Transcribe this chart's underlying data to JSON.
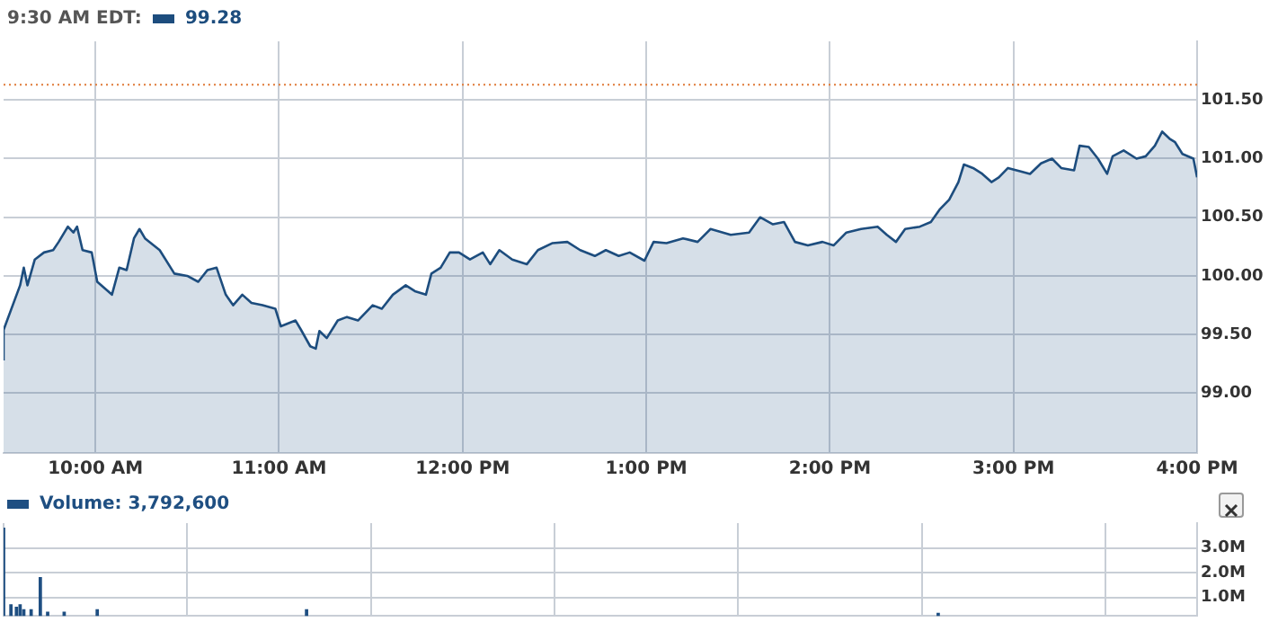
{
  "chart_data": [
    {
      "type": "area",
      "title": "9:30 AM EDT:",
      "legend": "top left",
      "grid": true,
      "xlim": [
        9.5,
        16
      ],
      "xticks": [
        {
          "value": 10,
          "label": "10:00 AM"
        },
        {
          "value": 11,
          "label": "11:00 AM"
        },
        {
          "value": 12,
          "label": "12:00 PM"
        },
        {
          "value": 13,
          "label": "1:00 PM"
        },
        {
          "value": 14,
          "label": "2:00 PM"
        },
        {
          "value": 15,
          "label": "3:00 PM"
        },
        {
          "value": 16,
          "label": "4:00 PM"
        }
      ],
      "ylim": [
        98.49,
        102.0
      ],
      "yticks": [
        {
          "value": 99,
          "label": "99.00"
        },
        {
          "value": 99.5,
          "label": "99.50"
        },
        {
          "value": 100,
          "label": "100.00"
        },
        {
          "value": 100.5,
          "label": "100.50"
        },
        {
          "value": 101,
          "label": "101.00"
        },
        {
          "value": 101.5,
          "label": "101.50"
        }
      ],
      "ref_lines": [
        {
          "axis": "y",
          "value": 101.63,
          "color": "#e07b39",
          "line_style": "dotted"
        }
      ],
      "x": [
        9.5,
        9.5,
        9.59,
        9.61,
        9.63,
        9.67,
        9.72,
        9.77,
        9.8,
        9.85,
        9.88,
        9.9,
        9.93,
        9.98,
        10.01,
        10.09,
        10.13,
        10.17,
        10.21,
        10.24,
        10.27,
        10.35,
        10.43,
        10.5,
        10.56,
        10.61,
        10.66,
        10.71,
        10.75,
        10.8,
        10.85,
        10.91,
        10.98,
        11.01,
        11.09,
        11.12,
        11.17,
        11.2,
        11.22,
        11.26,
        11.32,
        11.37,
        11.43,
        11.51,
        11.56,
        11.62,
        11.69,
        11.74,
        11.8,
        11.83,
        11.88,
        11.93,
        11.98,
        12.04,
        12.11,
        12.15,
        12.2,
        12.27,
        12.35,
        12.41,
        12.49,
        12.57,
        12.64,
        12.72,
        12.78,
        12.85,
        12.91,
        12.99,
        13.04,
        13.11,
        13.2,
        13.28,
        13.35,
        13.46,
        13.56,
        13.62,
        13.69,
        13.75,
        13.81,
        13.88,
        13.96,
        14.02,
        14.09,
        14.17,
        14.26,
        14.31,
        14.36,
        14.41,
        14.49,
        14.55,
        14.6,
        14.65,
        14.7,
        14.73,
        14.78,
        14.83,
        14.88,
        14.92,
        14.97,
        15.04,
        15.09,
        15.15,
        15.21,
        15.26,
        15.33,
        15.36,
        15.41,
        15.46,
        15.51,
        15.54,
        15.6,
        15.67,
        15.72,
        15.77,
        15.81,
        15.85,
        15.88,
        15.92,
        15.98,
        16.0
      ],
      "series": [
        {
          "name": "99.28",
          "color": "#1d4d7e",
          "values": [
            99.28,
            99.54,
            99.92,
            100.07,
            99.92,
            100.14,
            100.2,
            100.22,
            100.29,
            100.42,
            100.37,
            100.42,
            100.22,
            100.2,
            99.95,
            99.84,
            100.07,
            100.05,
            100.32,
            100.4,
            100.32,
            100.22,
            100.02,
            100.0,
            99.95,
            100.05,
            100.07,
            99.84,
            99.75,
            99.84,
            99.77,
            99.75,
            99.72,
            99.57,
            99.62,
            99.54,
            99.4,
            99.38,
            99.53,
            99.47,
            99.62,
            99.65,
            99.62,
            99.75,
            99.72,
            99.84,
            99.92,
            99.87,
            99.84,
            100.02,
            100.07,
            100.2,
            100.2,
            100.14,
            100.2,
            100.1,
            100.22,
            100.14,
            100.1,
            100.22,
            100.28,
            100.29,
            100.22,
            100.17,
            100.22,
            100.17,
            100.2,
            100.13,
            100.29,
            100.28,
            100.32,
            100.29,
            100.4,
            100.35,
            100.37,
            100.5,
            100.44,
            100.46,
            100.29,
            100.26,
            100.29,
            100.26,
            100.37,
            100.4,
            100.42,
            100.35,
            100.29,
            100.4,
            100.42,
            100.46,
            100.57,
            100.65,
            100.8,
            100.95,
            100.92,
            100.87,
            100.8,
            100.84,
            100.92,
            100.89,
            100.87,
            100.96,
            101.0,
            100.92,
            100.9,
            101.11,
            101.1,
            101.0,
            100.87,
            101.02,
            101.07,
            101.0,
            101.02,
            101.11,
            101.23,
            101.17,
            101.14,
            101.04,
            101.0,
            100.84
          ]
        }
      ]
    },
    {
      "type": "bar",
      "legend": "top left",
      "grid": true,
      "tick_labels": "y",
      "xlim": [
        9.5,
        16
      ],
      "xticks": [
        {
          "value": 10,
          "label": null
        },
        {
          "value": 11,
          "label": null
        },
        {
          "value": 12,
          "label": null
        },
        {
          "value": 13,
          "label": null
        },
        {
          "value": 14,
          "label": null
        },
        {
          "value": 15,
          "label": null
        },
        {
          "value": 16,
          "label": null
        }
      ],
      "ylim": [
        0.25,
        4.0
      ],
      "yticks": [
        {
          "value": 1,
          "label": "1.0M"
        },
        {
          "value": 2,
          "label": "2.0M"
        },
        {
          "value": 3,
          "label": "3.0M"
        }
      ],
      "x": [
        9.5,
        9.54,
        9.57,
        9.59,
        9.61,
        9.65,
        9.7,
        9.74,
        9.83,
        10.01,
        11.15,
        14.59
      ],
      "series": [
        {
          "name": "Volume: 3,792,600",
          "color": "#1f4f82",
          "values": [
            3.79,
            0.7,
            0.6,
            0.7,
            0.5,
            0.5,
            1.8,
            0.4,
            0.4,
            0.5,
            0.5,
            0.35
          ]
        }
      ]
    }
  ]
}
